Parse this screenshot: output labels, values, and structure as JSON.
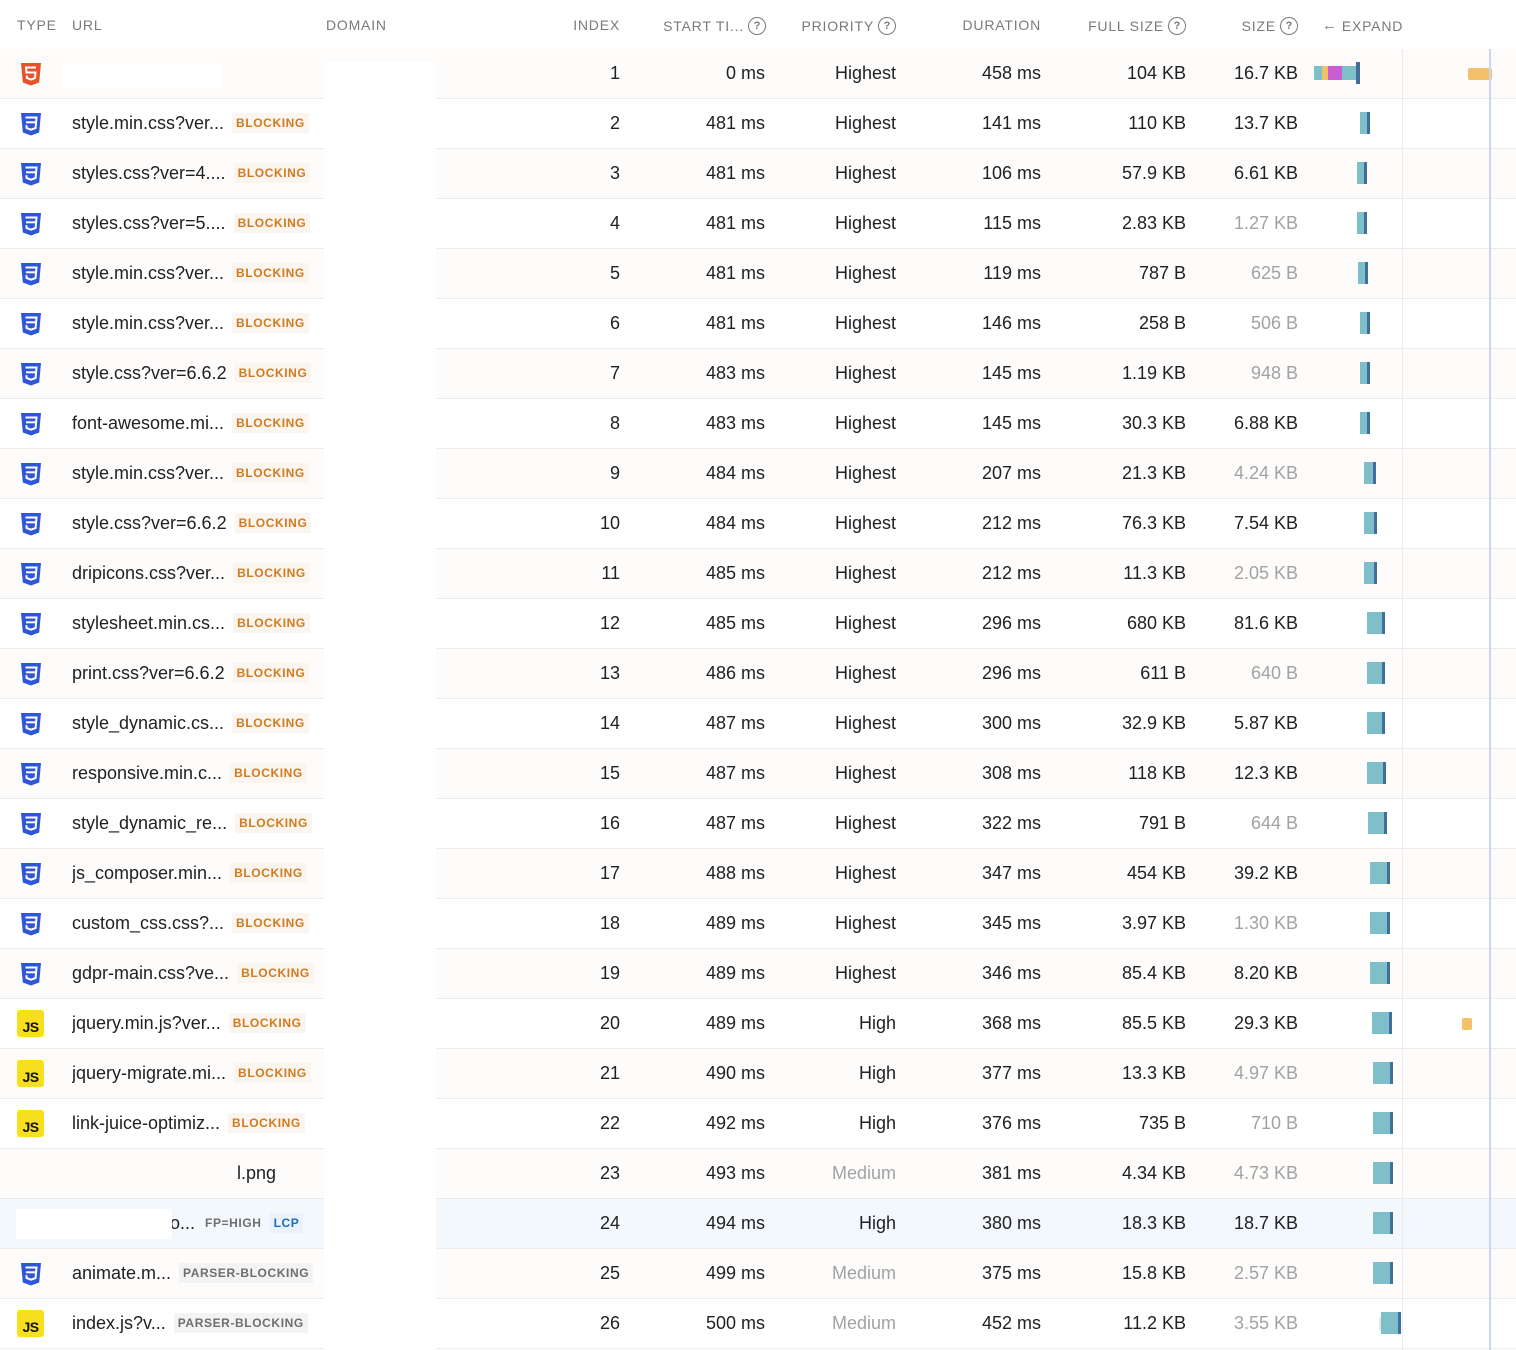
{
  "headers": {
    "type": "TYPE",
    "url": "URL",
    "domain": "DOMAIN",
    "index": "INDEX",
    "start_time": "START TI...",
    "priority": "PRIORITY",
    "duration": "DURATION",
    "full_size": "FULL SIZE",
    "size": "SIZE",
    "expand": "EXPAND",
    "help_glyph": "?",
    "expand_arrow": "←"
  },
  "js_glyph": "JS",
  "colors": {
    "blocking": "#d27a1f",
    "lcp": "#1d6fb8",
    "css_icon": "#2f56d8",
    "html_icon": "#e5532d",
    "js_icon": "#f7df1e",
    "bar_teal": "#7fbfca",
    "bar_dark": "#3f6f9a",
    "marker_orange": "#f3c16a"
  },
  "rows": [
    {
      "type": "html",
      "url": "",
      "badge": "",
      "badge2": "",
      "index": "1",
      "start": "0 ms",
      "priority": "Highest",
      "duration": "458 ms",
      "full_size": "104 KB",
      "size": "16.7 KB",
      "size_muted": false
    },
    {
      "type": "css",
      "url": "style.min.css?ver...",
      "badge": "BLOCKING",
      "badge2": "",
      "index": "2",
      "start": "481 ms",
      "priority": "Highest",
      "duration": "141 ms",
      "full_size": "110 KB",
      "size": "13.7 KB",
      "size_muted": false
    },
    {
      "type": "css",
      "url": "styles.css?ver=4....",
      "badge": "BLOCKING",
      "badge2": "",
      "index": "3",
      "start": "481 ms",
      "priority": "Highest",
      "duration": "106 ms",
      "full_size": "57.9 KB",
      "size": "6.61 KB",
      "size_muted": false
    },
    {
      "type": "css",
      "url": "styles.css?ver=5....",
      "badge": "BLOCKING",
      "badge2": "",
      "index": "4",
      "start": "481 ms",
      "priority": "Highest",
      "duration": "115 ms",
      "full_size": "2.83 KB",
      "size": "1.27 KB",
      "size_muted": true
    },
    {
      "type": "css",
      "url": "style.min.css?ver...",
      "badge": "BLOCKING",
      "badge2": "",
      "index": "5",
      "start": "481 ms",
      "priority": "Highest",
      "duration": "119 ms",
      "full_size": "787 B",
      "size": "625 B",
      "size_muted": true
    },
    {
      "type": "css",
      "url": "style.min.css?ver...",
      "badge": "BLOCKING",
      "badge2": "",
      "index": "6",
      "start": "481 ms",
      "priority": "Highest",
      "duration": "146 ms",
      "full_size": "258 B",
      "size": "506 B",
      "size_muted": true
    },
    {
      "type": "css",
      "url": "style.css?ver=6.6.2",
      "badge": "BLOCKING",
      "badge2": "",
      "index": "7",
      "start": "483 ms",
      "priority": "Highest",
      "duration": "145 ms",
      "full_size": "1.19 KB",
      "size": "948 B",
      "size_muted": true
    },
    {
      "type": "css",
      "url": "font-awesome.mi...",
      "badge": "BLOCKING",
      "badge2": "",
      "index": "8",
      "start": "483 ms",
      "priority": "Highest",
      "duration": "145 ms",
      "full_size": "30.3 KB",
      "size": "6.88 KB",
      "size_muted": false
    },
    {
      "type": "css",
      "url": "style.min.css?ver...",
      "badge": "BLOCKING",
      "badge2": "",
      "index": "9",
      "start": "484 ms",
      "priority": "Highest",
      "duration": "207 ms",
      "full_size": "21.3 KB",
      "size": "4.24 KB",
      "size_muted": true
    },
    {
      "type": "css",
      "url": "style.css?ver=6.6.2",
      "badge": "BLOCKING",
      "badge2": "",
      "index": "10",
      "start": "484 ms",
      "priority": "Highest",
      "duration": "212 ms",
      "full_size": "76.3 KB",
      "size": "7.54 KB",
      "size_muted": false
    },
    {
      "type": "css",
      "url": "dripicons.css?ver...",
      "badge": "BLOCKING",
      "badge2": "",
      "index": "11",
      "start": "485 ms",
      "priority": "Highest",
      "duration": "212 ms",
      "full_size": "11.3 KB",
      "size": "2.05 KB",
      "size_muted": true
    },
    {
      "type": "css",
      "url": "stylesheet.min.cs...",
      "badge": "BLOCKING",
      "badge2": "",
      "index": "12",
      "start": "485 ms",
      "priority": "Highest",
      "duration": "296 ms",
      "full_size": "680 KB",
      "size": "81.6 KB",
      "size_muted": false
    },
    {
      "type": "css",
      "url": "print.css?ver=6.6.2",
      "badge": "BLOCKING",
      "badge2": "",
      "index": "13",
      "start": "486 ms",
      "priority": "Highest",
      "duration": "296 ms",
      "full_size": "611 B",
      "size": "640 B",
      "size_muted": true
    },
    {
      "type": "css",
      "url": "style_dynamic.cs...",
      "badge": "BLOCKING",
      "badge2": "",
      "index": "14",
      "start": "487 ms",
      "priority": "Highest",
      "duration": "300 ms",
      "full_size": "32.9 KB",
      "size": "5.87 KB",
      "size_muted": false
    },
    {
      "type": "css",
      "url": "responsive.min.c...",
      "badge": "BLOCKING",
      "badge2": "",
      "index": "15",
      "start": "487 ms",
      "priority": "Highest",
      "duration": "308 ms",
      "full_size": "118 KB",
      "size": "12.3 KB",
      "size_muted": false
    },
    {
      "type": "css",
      "url": "style_dynamic_re...",
      "badge": "BLOCKING",
      "badge2": "",
      "index": "16",
      "start": "487 ms",
      "priority": "Highest",
      "duration": "322 ms",
      "full_size": "791 B",
      "size": "644 B",
      "size_muted": true
    },
    {
      "type": "css",
      "url": "js_composer.min...",
      "badge": "BLOCKING",
      "badge2": "",
      "index": "17",
      "start": "488 ms",
      "priority": "Highest",
      "duration": "347 ms",
      "full_size": "454 KB",
      "size": "39.2 KB",
      "size_muted": false
    },
    {
      "type": "css",
      "url": "custom_css.css?...",
      "badge": "BLOCKING",
      "badge2": "",
      "index": "18",
      "start": "489 ms",
      "priority": "Highest",
      "duration": "345 ms",
      "full_size": "3.97 KB",
      "size": "1.30 KB",
      "size_muted": true
    },
    {
      "type": "css",
      "url": "gdpr-main.css?ve...",
      "badge": "BLOCKING",
      "badge2": "",
      "index": "19",
      "start": "489 ms",
      "priority": "Highest",
      "duration": "346 ms",
      "full_size": "85.4 KB",
      "size": "8.20 KB",
      "size_muted": false
    },
    {
      "type": "js",
      "url": "jquery.min.js?ver...",
      "badge": "BLOCKING",
      "badge2": "",
      "index": "20",
      "start": "489 ms",
      "priority": "High",
      "duration": "368 ms",
      "full_size": "85.5 KB",
      "size": "29.3 KB",
      "size_muted": false
    },
    {
      "type": "js",
      "url": "jquery-migrate.mi...",
      "badge": "BLOCKING",
      "badge2": "",
      "index": "21",
      "start": "490 ms",
      "priority": "High",
      "duration": "377 ms",
      "full_size": "13.3 KB",
      "size": "4.97 KB",
      "size_muted": true
    },
    {
      "type": "js",
      "url": "link-juice-optimiz...",
      "badge": "BLOCKING",
      "badge2": "",
      "index": "22",
      "start": "492 ms",
      "priority": "High",
      "duration": "376 ms",
      "full_size": "735 B",
      "size": "710 B",
      "size_muted": true
    },
    {
      "type": "img",
      "url": "l.png",
      "badge": "",
      "badge2": "",
      "index": "23",
      "start": "493 ms",
      "priority": "Medium",
      "duration": "381 ms",
      "full_size": "4.34 KB",
      "size": "4.73 KB",
      "size_muted": true
    },
    {
      "type": "img",
      "url": "o...",
      "badge": "FP=HIGH",
      "badge2": "LCP",
      "index": "24",
      "start": "494 ms",
      "priority": "High",
      "duration": "380 ms",
      "full_size": "18.3 KB",
      "size": "18.7 KB",
      "size_muted": false
    },
    {
      "type": "css",
      "url": "animate.m...",
      "badge": "PARSER-BLOCKING",
      "badge2": "",
      "index": "25",
      "start": "499 ms",
      "priority": "Medium",
      "duration": "375 ms",
      "full_size": "15.8 KB",
      "size": "2.57 KB",
      "size_muted": true
    },
    {
      "type": "js",
      "url": "index.js?v...",
      "badge": "PARSER-BLOCKING",
      "badge2": "",
      "index": "26",
      "start": "500 ms",
      "priority": "Medium",
      "duration": "452 ms",
      "full_size": "11.2 KB",
      "size": "3.55 KB",
      "size_muted": true
    }
  ]
}
